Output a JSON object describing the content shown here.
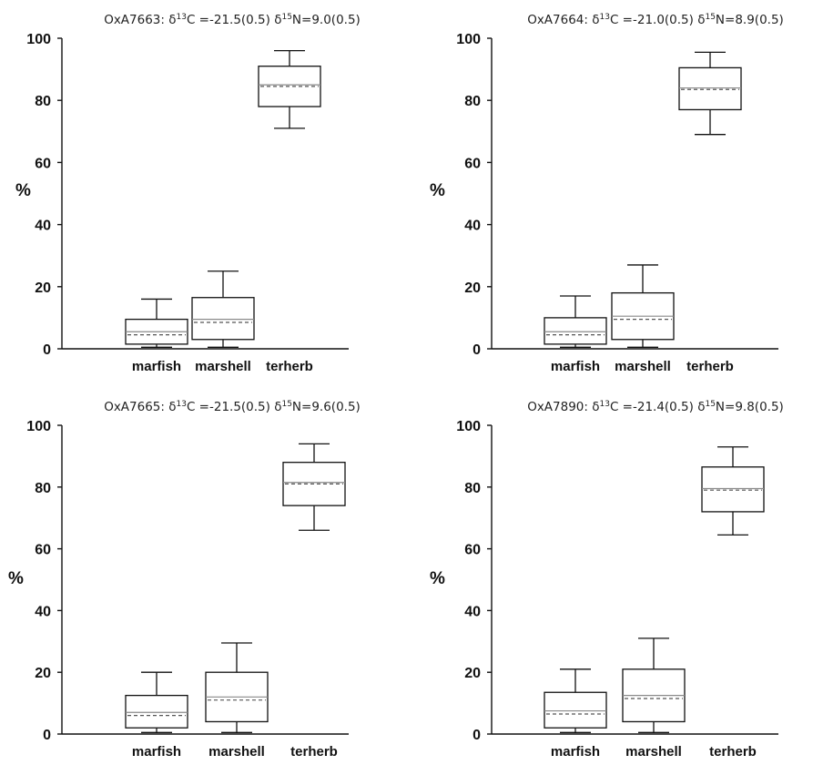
{
  "chart_data": [
    {
      "type": "box",
      "title": "OxA7663: δ13C =-21.5(0.5) δ15N=9.0(0.5)",
      "title_parts": {
        "prefix": "OxA7663: δ",
        "c_sup": "13",
        "c_mid": "C =-21.5(0.5) δ",
        "n_sup": "15",
        "n_suffix": "N=9.0(0.5)"
      },
      "ylabel": "%",
      "ylim": [
        0,
        100
      ],
      "yticks": [
        0,
        20,
        40,
        60,
        80,
        100
      ],
      "categories": [
        "marfish",
        "marshell",
        "terherb"
      ],
      "boxes": [
        {
          "category": "marfish",
          "whisker_low": 0.5,
          "q1": 1.5,
          "median": 5.5,
          "mean": 4.5,
          "q3": 9.5,
          "whisker_high": 16
        },
        {
          "category": "marshell",
          "whisker_low": 0.5,
          "q1": 3,
          "median": 9.5,
          "mean": 8.5,
          "q3": 16.5,
          "whisker_high": 25
        },
        {
          "category": "terherb",
          "whisker_low": 71,
          "q1": 78,
          "median": 85,
          "mean": 84.5,
          "q3": 91,
          "whisker_high": 96
        }
      ]
    },
    {
      "type": "box",
      "title": "OxA7664: δ13C =-21.0(0.5) δ15N=8.9(0.5)",
      "title_parts": {
        "prefix": "OxA7664: δ",
        "c_sup": "13",
        "c_mid": "C =-21.0(0.5) δ",
        "n_sup": "15",
        "n_suffix": "N=8.9(0.5)"
      },
      "ylabel": "%",
      "ylim": [
        0,
        100
      ],
      "yticks": [
        0,
        20,
        40,
        60,
        80,
        100
      ],
      "categories": [
        "marfish",
        "marshell",
        "terherb"
      ],
      "boxes": [
        {
          "category": "marfish",
          "whisker_low": 0.5,
          "q1": 1.5,
          "median": 5.5,
          "mean": 4.5,
          "q3": 10,
          "whisker_high": 17
        },
        {
          "category": "marshell",
          "whisker_low": 0.5,
          "q1": 3,
          "median": 10.5,
          "mean": 9.5,
          "q3": 18,
          "whisker_high": 27
        },
        {
          "category": "terherb",
          "whisker_low": 69,
          "q1": 77,
          "median": 84,
          "mean": 83.5,
          "q3": 90.5,
          "whisker_high": 95.5
        }
      ]
    },
    {
      "type": "box",
      "title": "OxA7665: δ13C =-21.5(0.5) δ15N=9.6(0.5)",
      "title_parts": {
        "prefix": "OxA7665: δ",
        "c_sup": "13",
        "c_mid": "C =-21.5(0.5) δ",
        "n_sup": "15",
        "n_suffix": "N=9.6(0.5)"
      },
      "ylabel": "%",
      "ylim": [
        0,
        100
      ],
      "yticks": [
        0,
        20,
        40,
        60,
        80,
        100
      ],
      "categories": [
        "marfish",
        "marshell",
        "terherb"
      ],
      "boxes": [
        {
          "category": "marfish",
          "whisker_low": 0.5,
          "q1": 2,
          "median": 7,
          "mean": 6,
          "q3": 12.5,
          "whisker_high": 20
        },
        {
          "category": "marshell",
          "whisker_low": 0.5,
          "q1": 4,
          "median": 12,
          "mean": 11,
          "q3": 20,
          "whisker_high": 29.5
        },
        {
          "category": "terherb",
          "whisker_low": 66,
          "q1": 74,
          "median": 81.5,
          "mean": 81,
          "q3": 88,
          "whisker_high": 94
        }
      ]
    },
    {
      "type": "box",
      "title": "OxA7890: δ13C =-21.4(0.5) δ15N=9.8(0.5)",
      "title_parts": {
        "prefix": "OxA7890: δ",
        "c_sup": "13",
        "c_mid": "C =-21.4(0.5) δ",
        "n_sup": "15",
        "n_suffix": "N=9.8(0.5)"
      },
      "ylabel": "%",
      "ylim": [
        0,
        100
      ],
      "yticks": [
        0,
        20,
        40,
        60,
        80,
        100
      ],
      "categories": [
        "marfish",
        "marshell",
        "terherb"
      ],
      "boxes": [
        {
          "category": "marfish",
          "whisker_low": 0.5,
          "q1": 2,
          "median": 7.5,
          "mean": 6.5,
          "q3": 13.5,
          "whisker_high": 21
        },
        {
          "category": "marshell",
          "whisker_low": 0.5,
          "q1": 4,
          "median": 12.5,
          "mean": 11.5,
          "q3": 21,
          "whisker_high": 31
        },
        {
          "category": "terherb",
          "whisker_low": 64.5,
          "q1": 72,
          "median": 79.5,
          "mean": 79,
          "q3": 86.5,
          "whisker_high": 93
        }
      ]
    }
  ]
}
